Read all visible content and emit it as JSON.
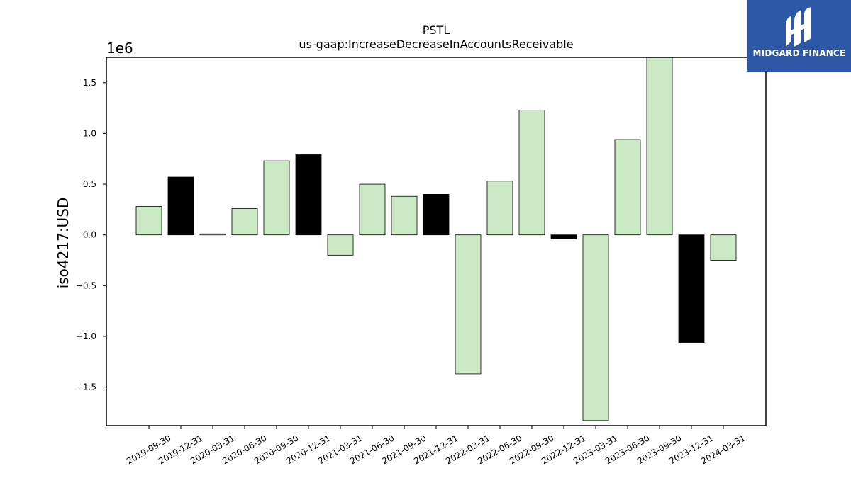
{
  "chart_data": {
    "type": "bar",
    "title": "PSTL",
    "subtitle": "us-gaap:IncreaseDecreaseInAccountsReceivable",
    "ylabel": "iso4217:USD",
    "xlabel": "",
    "y_multiplier": "1e6",
    "ylim": [
      -1.88,
      1.75
    ],
    "yticks": [
      -1.5,
      -1.0,
      -0.5,
      0.0,
      0.5,
      1.0,
      1.5
    ],
    "ytick_labels": [
      "−1.5",
      "−1.0",
      "−0.5",
      "0.0",
      "0.5",
      "1.0",
      "1.5"
    ],
    "categories": [
      "2019-09-30",
      "2019-12-31",
      "2020-03-31",
      "2020-06-30",
      "2020-09-30",
      "2020-12-31",
      "2021-03-31",
      "2021-06-30",
      "2021-09-30",
      "2021-12-31",
      "2022-03-31",
      "2022-06-30",
      "2022-09-30",
      "2022-12-31",
      "2023-03-31",
      "2023-06-30",
      "2023-09-30",
      "2023-12-31",
      "2024-03-31"
    ],
    "values": [
      0.28,
      0.57,
      0.01,
      0.26,
      0.73,
      0.79,
      -0.2,
      0.5,
      0.38,
      0.4,
      -1.37,
      0.53,
      1.23,
      -0.04,
      -1.83,
      0.94,
      1.75,
      -1.06,
      -0.25
    ],
    "bar_colors": [
      "#cce9c5",
      "#000000",
      "#cce9c5",
      "#cce9c5",
      "#cce9c5",
      "#000000",
      "#cce9c5",
      "#cce9c5",
      "#cce9c5",
      "#000000",
      "#cce9c5",
      "#cce9c5",
      "#cce9c5",
      "#000000",
      "#cce9c5",
      "#cce9c5",
      "#cce9c5",
      "#000000",
      "#cce9c5"
    ],
    "grid": false,
    "legend": "none"
  },
  "logo": {
    "text": "MIDGARD FINANCE",
    "background": "#2d58a8",
    "icon": "midgard-logo-icon"
  }
}
